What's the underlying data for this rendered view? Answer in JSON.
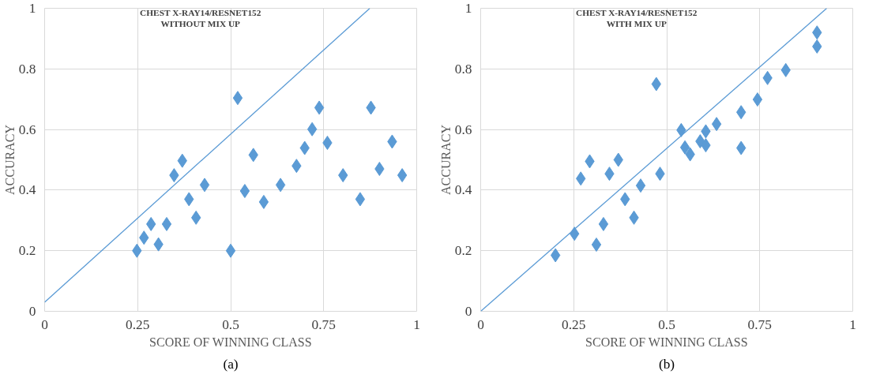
{
  "chart_data": [
    {
      "type": "scatter",
      "title": "CHEST X-RAY14/RESNET152\nWITHOUT MIX UP",
      "xlabel": "SCORE OF WINNING CLASS",
      "ylabel": "ACCURACY",
      "xlim": [
        0,
        1
      ],
      "ylim": [
        0,
        1
      ],
      "xticks": [
        0,
        0.25,
        0.5,
        0.75,
        1
      ],
      "yticks": [
        0,
        0.2,
        0.4,
        0.6,
        0.8,
        1
      ],
      "grid": true,
      "annotations": [
        "(a)"
      ],
      "series": [
        {
          "marker": "diamond",
          "color": "#5b9bd5",
          "x": [
            0.248,
            0.267,
            0.286,
            0.306,
            0.328,
            0.348,
            0.37,
            0.388,
            0.407,
            0.43,
            0.519,
            0.5,
            0.538,
            0.561,
            0.589,
            0.634,
            0.677,
            0.699,
            0.719,
            0.738,
            0.76,
            0.802,
            0.848,
            0.877,
            0.9,
            0.934,
            0.961
          ],
          "values": [
            0.2,
            0.243,
            0.288,
            0.221,
            0.288,
            0.449,
            0.497,
            0.37,
            0.309,
            0.417,
            0.704,
            0.2,
            0.397,
            0.516,
            0.361,
            0.417,
            0.48,
            0.539,
            0.601,
            0.672,
            0.556,
            0.449,
            0.37,
            0.672,
            0.47,
            0.56,
            0.449
          ]
        },
        {
          "type": "line",
          "color": "#5b9bd5",
          "x": [
            0,
            0.874
          ],
          "values": [
            0.03,
            1
          ]
        }
      ]
    },
    {
      "type": "scatter",
      "title": "CHEST X-RAY14/RESNET152\nWITH MIX UP",
      "xlabel": "SCORE OF WINNING CLASS",
      "ylabel": "ACCURACY",
      "xlim": [
        0,
        1
      ],
      "ylim": [
        0,
        1
      ],
      "xticks": [
        0,
        0.25,
        0.5,
        0.75,
        1
      ],
      "yticks": [
        0,
        0.2,
        0.4,
        0.6,
        0.8,
        1
      ],
      "grid": true,
      "annotations": [
        "(b)"
      ],
      "series": [
        {
          "marker": "diamond",
          "color": "#5b9bd5",
          "x": [
            0.201,
            0.252,
            0.311,
            0.33,
            0.269,
            0.293,
            0.346,
            0.37,
            0.388,
            0.412,
            0.43,
            0.482,
            0.472,
            0.539,
            0.549,
            0.563,
            0.59,
            0.605,
            0.605,
            0.634,
            0.7,
            0.7,
            0.744,
            0.771,
            0.82,
            0.904,
            0.904
          ],
          "values": [
            0.185,
            0.256,
            0.22,
            0.288,
            0.438,
            0.495,
            0.454,
            0.5,
            0.37,
            0.309,
            0.415,
            0.454,
            0.75,
            0.598,
            0.541,
            0.518,
            0.561,
            0.548,
            0.594,
            0.618,
            0.657,
            0.539,
            0.699,
            0.77,
            0.796,
            0.92,
            0.874
          ]
        },
        {
          "type": "line",
          "color": "#5b9bd5",
          "x": [
            0,
            0.93
          ],
          "values": [
            0,
            1
          ]
        }
      ]
    }
  ]
}
